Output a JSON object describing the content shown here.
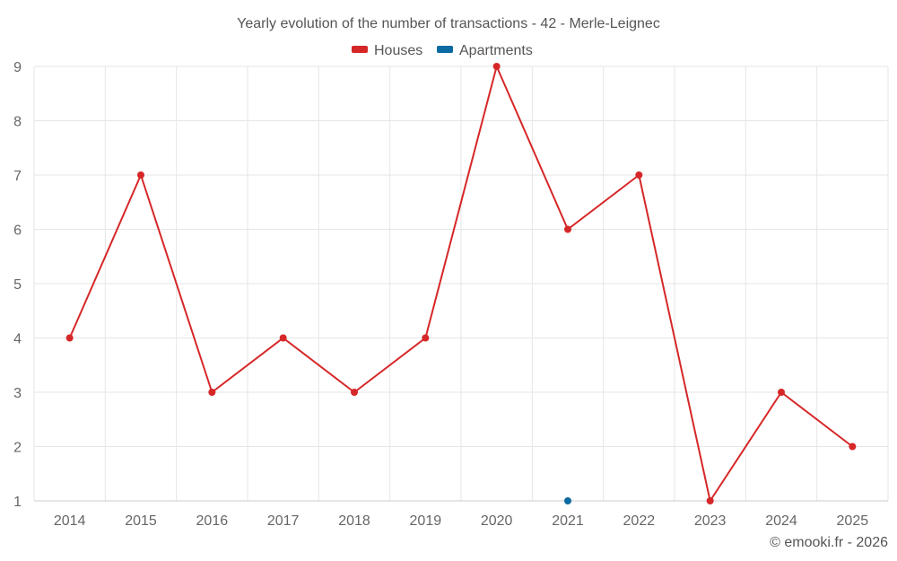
{
  "chart_data": {
    "type": "line",
    "title": "Yearly evolution of the number of transactions - 42 - Merle-Leignec",
    "categories": [
      "2014",
      "2015",
      "2016",
      "2017",
      "2018",
      "2019",
      "2020",
      "2021",
      "2022",
      "2023",
      "2024",
      "2025"
    ],
    "series": [
      {
        "name": "Houses",
        "color": "#d62728",
        "values": [
          4,
          7,
          3,
          4,
          3,
          4,
          9,
          6,
          7,
          1,
          3,
          2
        ]
      },
      {
        "name": "Apartments",
        "color": "#0b6aa2",
        "values": [
          null,
          null,
          null,
          null,
          null,
          null,
          null,
          1,
          null,
          null,
          null,
          null
        ]
      }
    ],
    "ylim": [
      1,
      9
    ],
    "yticks": [
      "1",
      "2",
      "3",
      "4",
      "5",
      "6",
      "7",
      "8",
      "9"
    ],
    "xlabel": "",
    "ylabel": "",
    "grid": true,
    "legend_position": "top-center"
  },
  "credit": "© emooki.fr - 2026"
}
